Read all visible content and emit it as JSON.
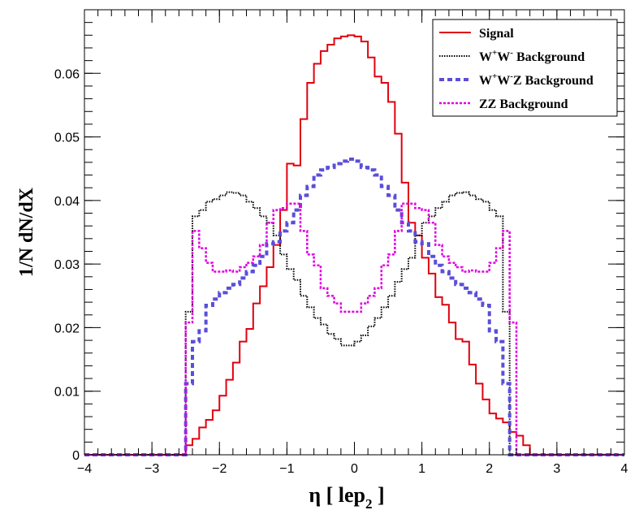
{
  "chart_data": {
    "type": "line",
    "title": "",
    "xlabel_main": "η [ lep",
    "xlabel_sub": "2",
    "xlabel_end": " ]",
    "ylabel": "1/N dN/dX",
    "xlim": [
      -4,
      4
    ],
    "ylim": [
      0,
      0.07
    ],
    "x_ticks": [
      "−4",
      "−3",
      "−2",
      "−1",
      "0",
      "1",
      "2",
      "3",
      "4"
    ],
    "y_ticks": [
      "0",
      "0.01",
      "0.02",
      "0.03",
      "0.04",
      "0.05",
      "0.06"
    ],
    "legend_position": "top-right",
    "bin_edges": [
      -4.0,
      -3.9,
      -3.8,
      -3.7,
      -3.6,
      -3.5,
      -3.4,
      -3.3,
      -3.2,
      -3.1,
      -3.0,
      -2.9,
      -2.8,
      -2.7,
      -2.6,
      -2.5,
      -2.4,
      -2.3,
      -2.2,
      -2.1,
      -2.0,
      -1.9,
      -1.8,
      -1.7,
      -1.6,
      -1.5,
      -1.4,
      -1.3,
      -1.2,
      -1.1,
      -1.0,
      -0.9,
      -0.8,
      -0.7,
      -0.6,
      -0.5,
      -0.4,
      -0.3,
      -0.2,
      -0.1,
      0.0,
      0.1,
      0.2,
      0.3,
      0.4,
      0.5,
      0.6,
      0.7,
      0.8,
      0.9,
      1.0,
      1.1,
      1.2,
      1.3,
      1.4,
      1.5,
      1.6,
      1.7,
      1.8,
      1.9,
      2.0,
      2.1,
      2.2,
      2.3,
      2.4,
      2.5,
      2.6,
      2.7,
      2.8,
      2.9,
      3.0,
      3.1,
      3.2,
      3.3,
      3.4,
      3.5,
      3.6,
      3.7,
      3.8,
      3.9,
      4.0
    ],
    "series": [
      {
        "name": "Signal",
        "legend_label": "Signal",
        "color": "#e0000f",
        "style": "solid",
        "values": [
          0,
          0,
          0,
          0,
          0,
          0,
          0,
          0,
          0,
          0,
          0,
          0,
          0,
          0,
          0,
          0.0015,
          0.0025,
          0.0043,
          0.0055,
          0.007,
          0.0093,
          0.0118,
          0.0145,
          0.0178,
          0.0198,
          0.0238,
          0.0265,
          0.0295,
          0.033,
          0.0385,
          0.0458,
          0.0455,
          0.0528,
          0.0585,
          0.0615,
          0.0635,
          0.0645,
          0.0655,
          0.0658,
          0.066,
          0.0658,
          0.065,
          0.0625,
          0.0595,
          0.0585,
          0.0555,
          0.0505,
          0.0428,
          0.0365,
          0.0345,
          0.031,
          0.0285,
          0.0248,
          0.0236,
          0.0208,
          0.0182,
          0.0178,
          0.0142,
          0.0112,
          0.0087,
          0.0065,
          0.0057,
          0.0051,
          0.0036,
          0.003,
          0.0015,
          0,
          0,
          0,
          0,
          0,
          0,
          0,
          0,
          0,
          0,
          0,
          0,
          0,
          0
        ]
      },
      {
        "name": "W+W- Background",
        "legend_label": "W",
        "legend_sup1": "+",
        "legend_mid": "W",
        "legend_sup2": "-",
        "legend_rest": " Background",
        "color": "#000000",
        "style": "dotted",
        "values": [
          0,
          0,
          0,
          0,
          0,
          0,
          0,
          0,
          0,
          0,
          0,
          0,
          0,
          0,
          0,
          0.0225,
          0.0375,
          0.0385,
          0.0398,
          0.0402,
          0.0408,
          0.0413,
          0.0412,
          0.0408,
          0.0398,
          0.0388,
          0.0375,
          0.0365,
          0.0345,
          0.0315,
          0.0292,
          0.0275,
          0.025,
          0.0232,
          0.0215,
          0.0205,
          0.019,
          0.0182,
          0.0172,
          0.0172,
          0.0178,
          0.0188,
          0.0202,
          0.0215,
          0.0232,
          0.025,
          0.0272,
          0.0292,
          0.031,
          0.0345,
          0.0365,
          0.0375,
          0.0388,
          0.0398,
          0.0408,
          0.0412,
          0.0413,
          0.0408,
          0.0402,
          0.0398,
          0.0385,
          0.0375,
          0.0225,
          0,
          0,
          0,
          0,
          0,
          0,
          0,
          0,
          0,
          0,
          0,
          0,
          0,
          0,
          0,
          0,
          0
        ]
      },
      {
        "name": "W+W-Z Background",
        "legend_label": "W",
        "legend_sup1": "+",
        "legend_mid": "W",
        "legend_sup2": "-",
        "legend_rest": "Z Background",
        "color": "#5a4ed8",
        "style": "dashed",
        "values": [
          0,
          0,
          0,
          0,
          0,
          0,
          0,
          0,
          0,
          0,
          0,
          0,
          0,
          0,
          0,
          0.0112,
          0.0178,
          0.0195,
          0.0235,
          0.0245,
          0.0255,
          0.0262,
          0.0268,
          0.0278,
          0.0288,
          0.0298,
          0.0312,
          0.0332,
          0.0335,
          0.0352,
          0.0365,
          0.0385,
          0.0408,
          0.0422,
          0.044,
          0.0448,
          0.0452,
          0.0458,
          0.0462,
          0.0465,
          0.0462,
          0.0452,
          0.0448,
          0.044,
          0.0422,
          0.0408,
          0.0385,
          0.0365,
          0.0352,
          0.0335,
          0.0332,
          0.0312,
          0.0298,
          0.0288,
          0.0278,
          0.0268,
          0.0262,
          0.0255,
          0.0245,
          0.0235,
          0.0195,
          0.0178,
          0.0112,
          0,
          0,
          0,
          0,
          0,
          0,
          0,
          0,
          0,
          0,
          0,
          0,
          0,
          0,
          0,
          0,
          0
        ]
      },
      {
        "name": "ZZ Background",
        "legend_label": "ZZ Background",
        "color": "#e000e0",
        "style": "dotted",
        "values": [
          0,
          0,
          0,
          0,
          0,
          0,
          0,
          0,
          0,
          0,
          0,
          0,
          0,
          0,
          0,
          0.0208,
          0.0352,
          0.0325,
          0.0302,
          0.0288,
          0.0288,
          0.029,
          0.0288,
          0.0295,
          0.0302,
          0.0312,
          0.033,
          0.0365,
          0.0385,
          0.0388,
          0.0395,
          0.0395,
          0.0352,
          0.0315,
          0.0298,
          0.0262,
          0.025,
          0.0238,
          0.0225,
          0.0225,
          0.0225,
          0.0238,
          0.025,
          0.0262,
          0.0298,
          0.0315,
          0.0352,
          0.0395,
          0.0395,
          0.0388,
          0.0385,
          0.0365,
          0.033,
          0.0312,
          0.0302,
          0.0295,
          0.0288,
          0.029,
          0.0288,
          0.0288,
          0.0302,
          0.0325,
          0.0352,
          0.0208,
          0,
          0,
          0,
          0,
          0,
          0,
          0,
          0,
          0,
          0,
          0,
          0,
          0,
          0,
          0,
          0,
          0
        ]
      }
    ]
  }
}
